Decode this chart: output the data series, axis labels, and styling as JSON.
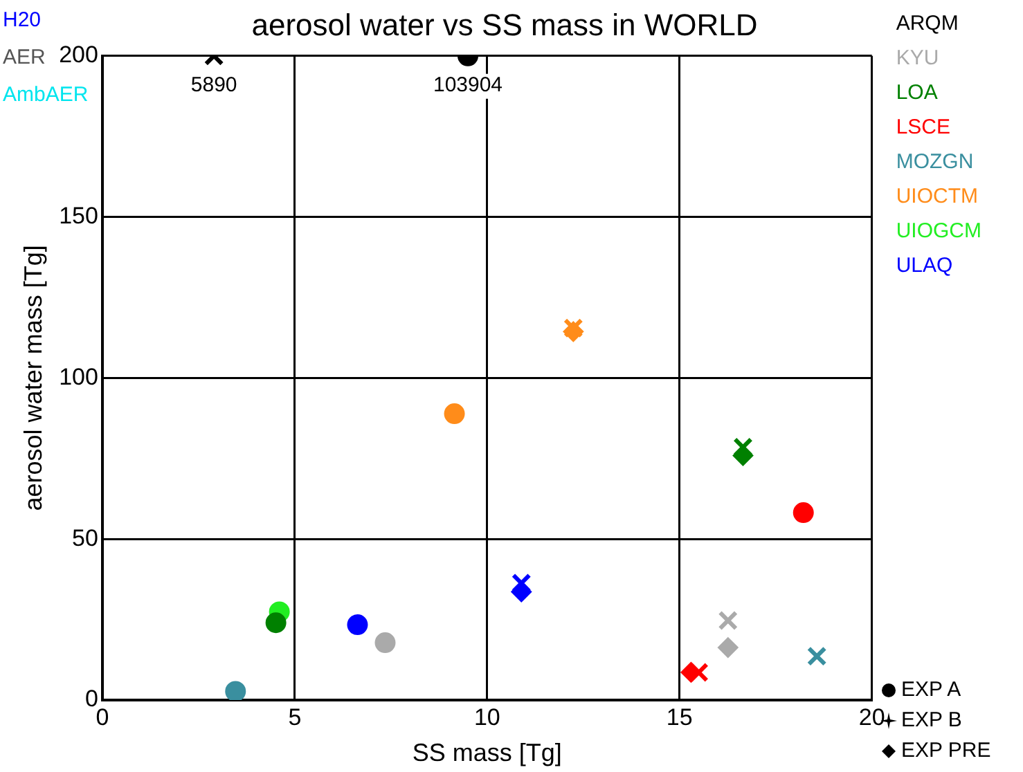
{
  "chart_data": {
    "type": "scatter",
    "title": "aerosol water vs SS mass in WORLD",
    "xlabel": "SS mass [Tg]",
    "ylabel": "aerosol water mass [Tg]",
    "xlim": [
      0,
      20
    ],
    "xticks": [
      0,
      5,
      10,
      15,
      20
    ],
    "ylim": [
      0,
      200
    ],
    "yticks": [
      0,
      50,
      100,
      150,
      200
    ],
    "grid": true,
    "legend": "right",
    "series": [
      {
        "name": "ARQM",
        "color": "#000000",
        "marker": "circle",
        "x": [
          9.5
        ],
        "values": [
          200
        ]
      },
      {
        "color": "#000000",
        "marker": "cross",
        "x": [
          2.9
        ],
        "values": [
          200
        ]
      },
      {
        "name": "KYU",
        "color": "#aaaaaa",
        "marker": "circle",
        "x": [
          7.35
        ],
        "values": [
          17.8
        ]
      },
      {
        "color": "#aaaaaa",
        "marker": "cross",
        "x": [
          16.26
        ],
        "values": [
          24.7
        ]
      },
      {
        "color": "#aaaaaa",
        "marker": "diamond",
        "x": [
          16.26
        ],
        "values": [
          16.3
        ]
      },
      {
        "name": "LOA",
        "color": "#008000",
        "marker": "circle",
        "x": [
          4.51
        ],
        "values": [
          24
        ]
      },
      {
        "color": "#008000",
        "marker": "cross",
        "x": [
          16.65
        ],
        "values": [
          78.5
        ]
      },
      {
        "color": "#008000",
        "marker": "diamond",
        "x": [
          16.65
        ],
        "values": [
          75.9
        ]
      },
      {
        "name": "LSCE",
        "color": "#ff0000",
        "marker": "circle",
        "x": [
          18.22
        ],
        "values": [
          58.2
        ]
      },
      {
        "color": "#ff0000",
        "marker": "cross",
        "x": [
          15.5
        ],
        "values": [
          8.6
        ]
      },
      {
        "color": "#ff0000",
        "marker": "diamond",
        "x": [
          15.3
        ],
        "values": [
          8.6
        ]
      },
      {
        "name": "MOZGN",
        "color": "#3a8f9f",
        "marker": "circle",
        "x": [
          3.46
        ],
        "values": [
          2.7
        ]
      },
      {
        "color": "#3a8f9f",
        "marker": "cross",
        "x": [
          18.57
        ],
        "values": [
          13.6
        ]
      },
      {
        "name": "UIOCTM",
        "color": "#ff8c1a",
        "marker": "circle",
        "x": [
          9.15
        ],
        "values": [
          88.9
        ]
      },
      {
        "color": "#ff8c1a",
        "marker": "cross",
        "x": [
          12.24
        ],
        "values": [
          115.5
        ]
      },
      {
        "color": "#ff8c1a",
        "marker": "diamond",
        "x": [
          12.24
        ],
        "values": [
          114.4
        ]
      },
      {
        "name": "UIOGCM",
        "color": "#22ee22",
        "marker": "circle",
        "x": [
          4.6
        ],
        "values": [
          27.4
        ]
      },
      {
        "name": "ULAQ",
        "color": "#0000ff",
        "marker": "circle",
        "x": [
          6.63
        ],
        "values": [
          23.4
        ]
      },
      {
        "color": "#0000ff",
        "marker": "cross",
        "x": [
          10.89
        ],
        "values": [
          36.3
        ]
      },
      {
        "color": "#0000ff",
        "marker": "diamond",
        "x": [
          10.89
        ],
        "values": [
          33.6
        ]
      }
    ],
    "annotations": [
      "H20",
      "AER",
      "AmbAER",
      {
        "text": "5890",
        "x": 2.9,
        "y": 200
      },
      {
        "text": "103904",
        "x": 9.5,
        "y": 200
      },
      "EXP A",
      "EXP B",
      "EXP PRE"
    ]
  }
}
